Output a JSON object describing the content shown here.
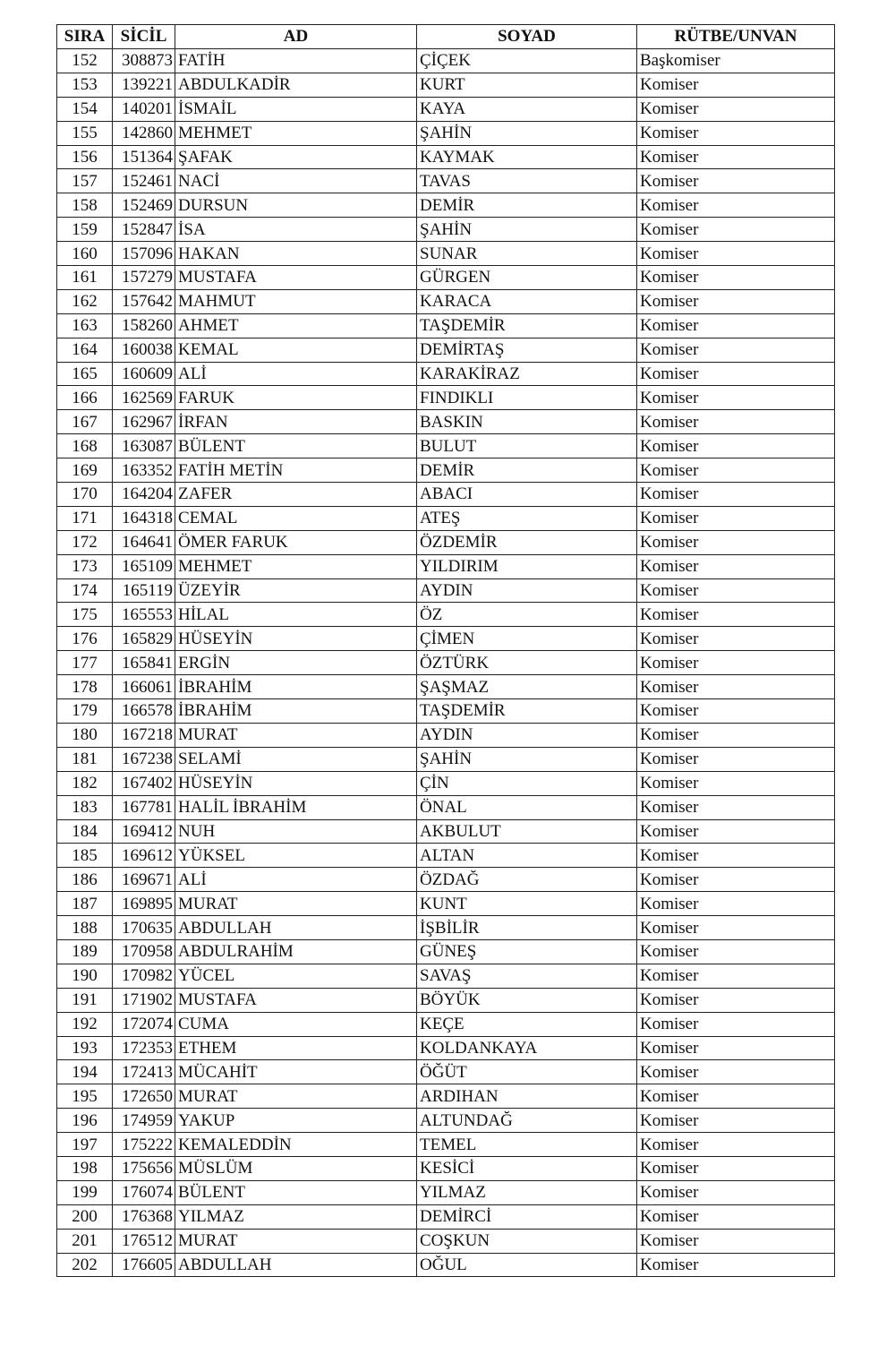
{
  "headers": {
    "sira": "SIRA",
    "sicil": "SİCİL",
    "ad": "AD",
    "soyad": "SOYAD",
    "rutbe": "RÜTBE/UNVAN"
  },
  "rows": [
    [
      "152",
      "308873",
      "FATİH",
      "ÇİÇEK",
      "Başkomiser"
    ],
    [
      "153",
      "139221",
      "ABDULKADİR",
      "KURT",
      "Komiser"
    ],
    [
      "154",
      "140201",
      "İSMAİL",
      "KAYA",
      "Komiser"
    ],
    [
      "155",
      "142860",
      "MEHMET",
      "ŞAHİN",
      "Komiser"
    ],
    [
      "156",
      "151364",
      "ŞAFAK",
      "KAYMAK",
      "Komiser"
    ],
    [
      "157",
      "152461",
      "NACİ",
      "TAVAS",
      "Komiser"
    ],
    [
      "158",
      "152469",
      "DURSUN",
      "DEMİR",
      "Komiser"
    ],
    [
      "159",
      "152847",
      "İSA",
      "ŞAHİN",
      "Komiser"
    ],
    [
      "160",
      "157096",
      "HAKAN",
      "SUNAR",
      "Komiser"
    ],
    [
      "161",
      "157279",
      "MUSTAFA",
      "GÜRGEN",
      "Komiser"
    ],
    [
      "162",
      "157642",
      "MAHMUT",
      "KARACA",
      "Komiser"
    ],
    [
      "163",
      "158260",
      "AHMET",
      "TAŞDEMİR",
      "Komiser"
    ],
    [
      "164",
      "160038",
      "KEMAL",
      "DEMİRTAŞ",
      "Komiser"
    ],
    [
      "165",
      "160609",
      "ALİ",
      "KARAKİRAZ",
      "Komiser"
    ],
    [
      "166",
      "162569",
      "FARUK",
      "FINDIKLI",
      "Komiser"
    ],
    [
      "167",
      "162967",
      "İRFAN",
      "BASKIN",
      "Komiser"
    ],
    [
      "168",
      "163087",
      "BÜLENT",
      "BULUT",
      "Komiser"
    ],
    [
      "169",
      "163352",
      "FATİH METİN",
      "DEMİR",
      "Komiser"
    ],
    [
      "170",
      "164204",
      "ZAFER",
      "ABACI",
      "Komiser"
    ],
    [
      "171",
      "164318",
      "CEMAL",
      "ATEŞ",
      "Komiser"
    ],
    [
      "172",
      "164641",
      "ÖMER FARUK",
      "ÖZDEMİR",
      "Komiser"
    ],
    [
      "173",
      "165109",
      "MEHMET",
      "YILDIRIM",
      "Komiser"
    ],
    [
      "174",
      "165119",
      "ÜZEYİR",
      "AYDIN",
      "Komiser"
    ],
    [
      "175",
      "165553",
      "HİLAL",
      "ÖZ",
      "Komiser"
    ],
    [
      "176",
      "165829",
      "HÜSEYİN",
      "ÇİMEN",
      "Komiser"
    ],
    [
      "177",
      "165841",
      "ERGİN",
      "ÖZTÜRK",
      "Komiser"
    ],
    [
      "178",
      "166061",
      "İBRAHİM",
      "ŞAŞMAZ",
      "Komiser"
    ],
    [
      "179",
      "166578",
      "İBRAHİM",
      "TAŞDEMİR",
      "Komiser"
    ],
    [
      "180",
      "167218",
      "MURAT",
      "AYDIN",
      "Komiser"
    ],
    [
      "181",
      "167238",
      "SELAMİ",
      "ŞAHİN",
      "Komiser"
    ],
    [
      "182",
      "167402",
      "HÜSEYİN",
      "ÇİN",
      "Komiser"
    ],
    [
      "183",
      "167781",
      "HALİL İBRAHİM",
      "ÖNAL",
      "Komiser"
    ],
    [
      "184",
      "169412",
      "NUH",
      "AKBULUT",
      "Komiser"
    ],
    [
      "185",
      "169612",
      "YÜKSEL",
      "ALTAN",
      "Komiser"
    ],
    [
      "186",
      "169671",
      "ALİ",
      "ÖZDAĞ",
      "Komiser"
    ],
    [
      "187",
      "169895",
      "MURAT",
      "KUNT",
      "Komiser"
    ],
    [
      "188",
      "170635",
      "ABDULLAH",
      "İŞBİLİR",
      "Komiser"
    ],
    [
      "189",
      "170958",
      "ABDULRAHİM",
      "GÜNEŞ",
      "Komiser"
    ],
    [
      "190",
      "170982",
      "YÜCEL",
      "SAVAŞ",
      "Komiser"
    ],
    [
      "191",
      "171902",
      "MUSTAFA",
      "BÖYÜK",
      "Komiser"
    ],
    [
      "192",
      "172074",
      "CUMA",
      "KEÇE",
      "Komiser"
    ],
    [
      "193",
      "172353",
      "ETHEM",
      "KOLDANKAYA",
      "Komiser"
    ],
    [
      "194",
      "172413",
      "MÜCAHİT",
      "ÖĞÜT",
      "Komiser"
    ],
    [
      "195",
      "172650",
      "MURAT",
      "ARDIHAN",
      "Komiser"
    ],
    [
      "196",
      "174959",
      "YAKUP",
      "ALTUNDAĞ",
      "Komiser"
    ],
    [
      "197",
      "175222",
      "KEMALEDDİN",
      "TEMEL",
      "Komiser"
    ],
    [
      "198",
      "175656",
      "MÜSLÜM",
      "KESİCİ",
      "Komiser"
    ],
    [
      "199",
      "176074",
      "BÜLENT",
      "YILMAZ",
      "Komiser"
    ],
    [
      "200",
      "176368",
      "YILMAZ",
      "DEMİRCİ",
      "Komiser"
    ],
    [
      "201",
      "176512",
      "MURAT",
      "COŞKUN",
      "Komiser"
    ],
    [
      "202",
      "176605",
      "ABDULLAH",
      "OĞUL",
      "Komiser"
    ]
  ]
}
